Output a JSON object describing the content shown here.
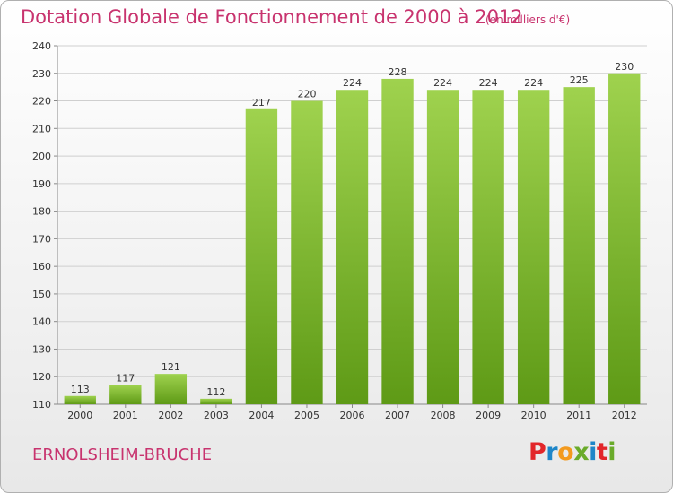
{
  "title": "Dotation Globale de Fonctionnement de 2000 à 2012",
  "unit": "(en milliers d'€)",
  "town": "ERNOLSHEIM-BRUCHE",
  "logo": {
    "text": "Proxiti",
    "colors": [
      "#e2262a",
      "#1e86c8",
      "#f39a1e",
      "#6aab2a",
      "#1e86c8",
      "#e2262a",
      "#6aab2a"
    ]
  },
  "chart_data": {
    "type": "bar",
    "title": "Dotation Globale de Fonctionnement de 2000 à 2012",
    "xlabel": "",
    "ylabel": "",
    "categories": [
      "2000",
      "2001",
      "2002",
      "2003",
      "2004",
      "2005",
      "2006",
      "2007",
      "2008",
      "2009",
      "2010",
      "2011",
      "2012"
    ],
    "values": [
      113,
      117,
      121,
      112,
      217,
      220,
      224,
      228,
      224,
      224,
      224,
      225,
      230
    ],
    "ylim": [
      110,
      240
    ],
    "yticks": [
      110,
      120,
      130,
      140,
      150,
      160,
      170,
      180,
      190,
      200,
      210,
      220,
      230,
      240
    ],
    "grid": true,
    "bar_color": "#7ab52f"
  }
}
